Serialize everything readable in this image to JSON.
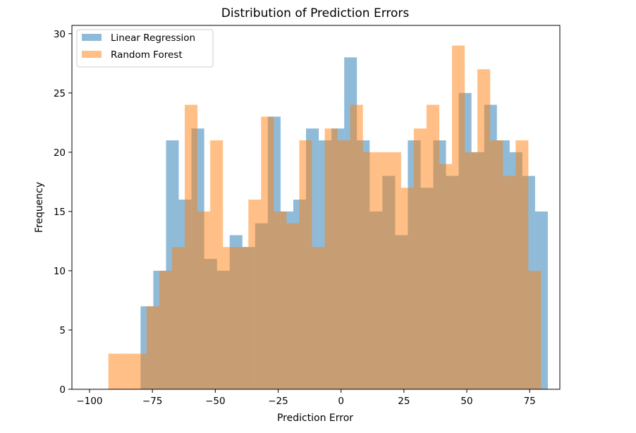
{
  "chart_data": {
    "type": "histogram",
    "title": "Distribution of Prediction Errors",
    "xlabel": "Prediction Error",
    "ylabel": "Frequency",
    "xlim": [
      -107,
      87
    ],
    "ylim": [
      0,
      30.7
    ],
    "xticks": [
      -100,
      -75,
      -50,
      -25,
      0,
      25,
      50,
      75
    ],
    "xtick_labels": [
      "−100",
      "−75",
      "−50",
      "−25",
      "0",
      "25",
      "50",
      "75"
    ],
    "yticks": [
      0,
      5,
      10,
      15,
      20,
      25,
      30
    ],
    "ytick_labels": [
      "0",
      "5",
      "10",
      "15",
      "20",
      "25",
      "30"
    ],
    "grid": false,
    "legend_position": "upper-left",
    "series": [
      {
        "name": "Linear Regression",
        "color": "#1f77b4",
        "alpha": 0.5,
        "bin_start": -79.7,
        "bin_width": 5.06,
        "counts": [
          7,
          10,
          21,
          16,
          22,
          11,
          10,
          13,
          12,
          14,
          23,
          15,
          16,
          22,
          21,
          22,
          28,
          21,
          15,
          18,
          13,
          21,
          17,
          21,
          18,
          25,
          20,
          24,
          21,
          20,
          18,
          15
        ]
      },
      {
        "name": "Random Forest",
        "color": "#ff7f0e",
        "alpha": 0.5,
        "bin_start": -92.5,
        "bin_width": 5.06,
        "counts": [
          3,
          3,
          3,
          7,
          10,
          12,
          24,
          15,
          21,
          12,
          12,
          16,
          23,
          15,
          14,
          21,
          12,
          22,
          21,
          24,
          20,
          20,
          20,
          17,
          22,
          24,
          19,
          29,
          20,
          27,
          21,
          18,
          21,
          10
        ]
      }
    ]
  }
}
